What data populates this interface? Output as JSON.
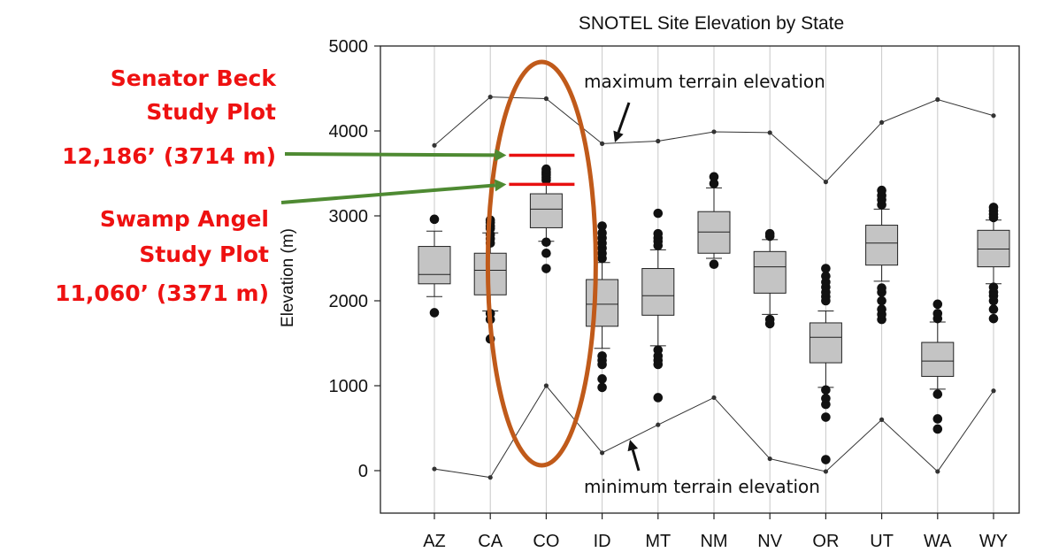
{
  "chart_data": {
    "type": "box",
    "title": "SNOTEL Site Elevation by State",
    "xlabel": "",
    "ylabel": "Elevation (m)",
    "ylim": [
      -500,
      5000
    ],
    "yticks": [
      0,
      1000,
      2000,
      3000,
      4000,
      5000
    ],
    "categories": [
      "AZ",
      "CA",
      "CO",
      "ID",
      "MT",
      "NM",
      "NV",
      "OR",
      "UT",
      "WA",
      "WY"
    ],
    "boxes": [
      {
        "whisker_low": 2050,
        "q1": 2200,
        "median": 2310,
        "q3": 2640,
        "whisker_high": 2820,
        "outliers": [
          1860,
          2960
        ]
      },
      {
        "whisker_low": 1880,
        "q1": 2070,
        "median": 2360,
        "q3": 2560,
        "whisker_high": 2800,
        "outliers": [
          1550,
          1780,
          1850,
          2680,
          2730,
          2780,
          2850,
          2880,
          2920,
          2950
        ]
      },
      {
        "whisker_low": 2700,
        "q1": 2860,
        "median": 3080,
        "q3": 3260,
        "whisker_high": 3380,
        "outliers": [
          2380,
          2560,
          2690,
          3420,
          3450,
          3480,
          3500,
          3520,
          3550
        ]
      },
      {
        "whisker_low": 1440,
        "q1": 1700,
        "median": 1960,
        "q3": 2250,
        "whisker_high": 2450,
        "outliers": [
          980,
          1080,
          1250,
          1300,
          1350,
          2500,
          2560,
          2620,
          2680,
          2740,
          2800,
          2880
        ]
      },
      {
        "whisker_low": 1470,
        "q1": 1830,
        "median": 2060,
        "q3": 2380,
        "whisker_high": 2600,
        "outliers": [
          860,
          1250,
          1300,
          1350,
          1420,
          2650,
          2700,
          2740,
          2790,
          3030
        ]
      },
      {
        "whisker_low": 2500,
        "q1": 2560,
        "median": 2810,
        "q3": 3050,
        "whisker_high": 3330,
        "outliers": [
          2430,
          3380,
          3460
        ]
      },
      {
        "whisker_low": 1840,
        "q1": 2090,
        "median": 2400,
        "q3": 2580,
        "whisker_high": 2720,
        "outliers": [
          1730,
          1780,
          2760,
          2790
        ]
      },
      {
        "whisker_low": 980,
        "q1": 1270,
        "median": 1570,
        "q3": 1740,
        "whisker_high": 1880,
        "outliers": [
          130,
          630,
          780,
          850,
          950,
          2000,
          2050,
          2100,
          2160,
          2220,
          2290,
          2380
        ]
      },
      {
        "whisker_low": 2230,
        "q1": 2420,
        "median": 2680,
        "q3": 2890,
        "whisker_high": 3080,
        "outliers": [
          1780,
          1840,
          1900,
          2000,
          2100,
          2150,
          3130,
          3190,
          3240,
          3300
        ]
      },
      {
        "whisker_low": 960,
        "q1": 1110,
        "median": 1290,
        "q3": 1510,
        "whisker_high": 1750,
        "outliers": [
          490,
          610,
          900,
          1790,
          1850,
          1960
        ]
      },
      {
        "whisker_low": 2200,
        "q1": 2400,
        "median": 2610,
        "q3": 2830,
        "whisker_high": 2950,
        "outliers": [
          1790,
          1900,
          2000,
          2060,
          2100,
          2160,
          2980,
          3020,
          3060,
          3100
        ]
      }
    ],
    "series": [
      {
        "name": "maximum terrain elevation",
        "values": [
          3830,
          4400,
          4380,
          3850,
          3880,
          3990,
          3980,
          3400,
          4100,
          4370,
          4180
        ]
      },
      {
        "name": "minimum terrain elevation",
        "values": [
          20,
          -80,
          1000,
          210,
          540,
          860,
          140,
          -10,
          600,
          -10,
          940
        ]
      }
    ],
    "grid": "vertical",
    "annotations": {
      "max_label": "maximum terrain elevation",
      "min_label": "minimum terrain elevation",
      "senator_beck": {
        "lines": [
          "Senator Beck",
          "Study Plot",
          "12,186’ (3714 m)"
        ],
        "elevation_m": 3714
      },
      "swamp_angel": {
        "lines": [
          "Swamp Angel",
          "Study Plot",
          "11,060’ (3371 m)"
        ],
        "elevation_m": 3371
      },
      "highlight_category": "CO"
    }
  },
  "colors": {
    "box_fill": "#c4c4c4",
    "highlight_ellipse": "#c05a1a",
    "plot_marker": "#e81010",
    "pointer_arrow": "#4e8a32",
    "annotation_text": "#ee1111"
  }
}
